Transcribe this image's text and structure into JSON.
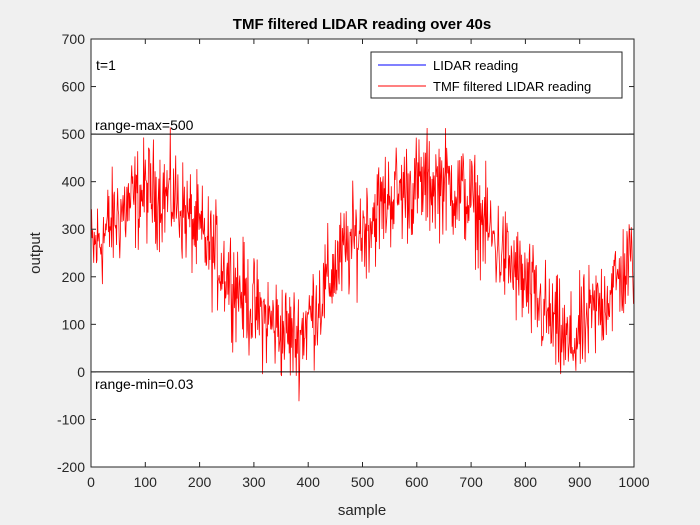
{
  "chart_data": {
    "type": "line",
    "title": "TMF filtered LIDAR reading over 40s",
    "xlabel": "sample",
    "ylabel": "output",
    "xlim": [
      0,
      1000
    ],
    "ylim": [
      -200,
      700
    ],
    "xticks": [
      0,
      100,
      200,
      300,
      400,
      500,
      600,
      700,
      800,
      900,
      1000
    ],
    "yticks": [
      -200,
      -100,
      0,
      100,
      200,
      300,
      400,
      500,
      600,
      700
    ],
    "grid": false,
    "legend_position": "top-right",
    "series": [
      {
        "name": "LIDAR reading",
        "color": "#0000ff",
        "values": []
      },
      {
        "name": "TMF filtered LIDAR reading",
        "color": "#ff0000",
        "trend": {
          "x": [
            0,
            50,
            100,
            150,
            200,
            250,
            300,
            350,
            380,
            420,
            450,
            500,
            550,
            600,
            650,
            700,
            750,
            800,
            850,
            880,
            900,
            950,
            1000
          ],
          "y": [
            250,
            330,
            380,
            370,
            290,
            210,
            130,
            90,
            70,
            150,
            220,
            300,
            370,
            390,
            400,
            360,
            260,
            180,
            100,
            50,
            80,
            160,
            240
          ]
        },
        "noise_amplitude": 100,
        "sample_count": 1000
      }
    ],
    "reference_lines": [
      {
        "y": 500,
        "label": "range-max=500",
        "color": "#000000"
      },
      {
        "y": 0,
        "label": "range-min=0.03",
        "color": "#000000"
      }
    ],
    "annotations": [
      {
        "text": "t=1",
        "position": "top-left"
      }
    ]
  }
}
